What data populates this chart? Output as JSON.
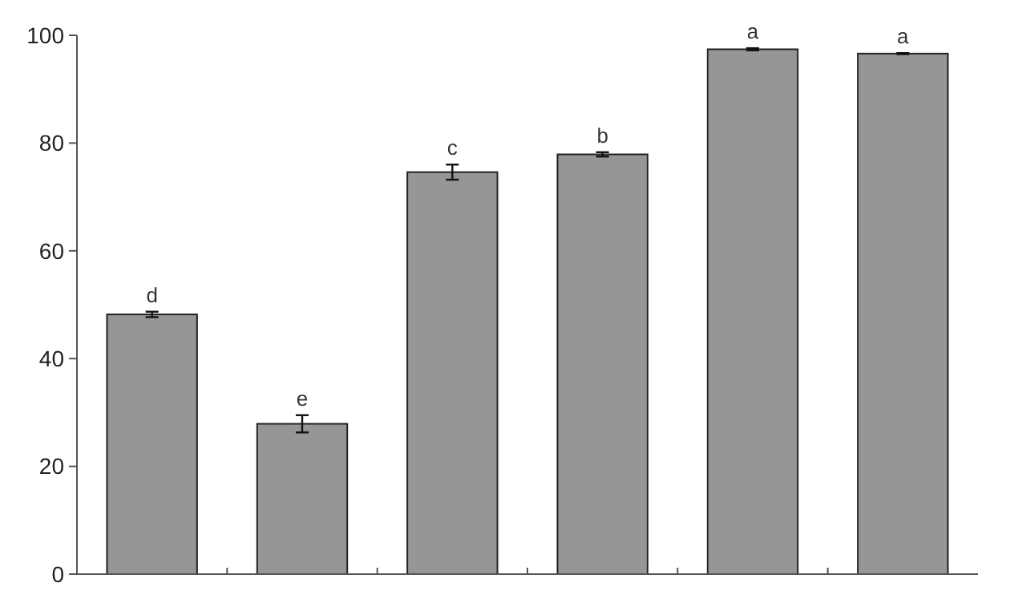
{
  "chart_data": {
    "type": "bar",
    "categories": [
      null,
      null,
      null,
      null,
      null,
      null
    ],
    "values": [
      48.2,
      27.9,
      74.6,
      77.9,
      97.4,
      96.6
    ],
    "errors": [
      0.5,
      1.6,
      1.4,
      0.4,
      0.2,
      0.1
    ],
    "value_labels": [
      "d",
      "e",
      "c",
      "b",
      "a",
      "a"
    ],
    "color": "#969696",
    "ylim": [
      0,
      100
    ],
    "yticks": [
      0,
      20,
      40,
      60,
      80,
      100
    ],
    "grid": false
  }
}
